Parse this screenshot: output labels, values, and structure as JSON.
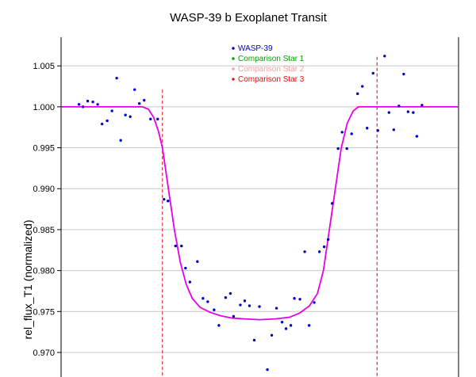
{
  "chart_data": {
    "type": "scatter",
    "title": "WASP-39 b Exoplanet Transit",
    "xlabel": "",
    "ylabel": "rel_flux_T1 (normalized)",
    "xlim": [
      0,
      100
    ],
    "ylim": [
      0.967,
      1.0085
    ],
    "yticks": [
      0.97,
      0.975,
      0.98,
      0.985,
      0.99,
      0.995,
      1.0,
      1.005
    ],
    "ytick_labels": [
      "0.970",
      "0.975",
      "0.980",
      "0.985",
      "0.990",
      "0.995",
      "1.000",
      "1.005"
    ],
    "grid": true,
    "legend_position": "top-center",
    "colors": {
      "points": "#0000cc",
      "model": "#e600e6",
      "markers": "#e03030",
      "grid": "#c8c8c8",
      "comparison1": "#00a000",
      "comparison2": "#f0a0a0",
      "comparison3": "#e01010"
    },
    "legend": [
      {
        "label": "WASP-39",
        "color": "#0000cc"
      },
      {
        "label": "Comparison Star 1",
        "color": "#00a000"
      },
      {
        "label": "Comparison Star 2",
        "color": "#f0a0a0"
      },
      {
        "label": "Comparison Star 3",
        "color": "#e01010"
      }
    ],
    "ingress_marker_x": 25.5,
    "egress_marker_x": 79.5,
    "series": [
      {
        "name": "WASP-39",
        "kind": "scatter",
        "points": [
          [
            4.5,
            1.0003
          ],
          [
            5.5,
            1.0
          ],
          [
            6.7,
            1.0007
          ],
          [
            8.0,
            1.0006
          ],
          [
            9.2,
            1.0003
          ],
          [
            10.3,
            0.9979
          ],
          [
            11.6,
            0.9983
          ],
          [
            12.8,
            0.9995
          ],
          [
            14.0,
            1.0035
          ],
          [
            15.0,
            0.9959
          ],
          [
            16.2,
            0.999
          ],
          [
            17.4,
            0.9988
          ],
          [
            18.5,
            1.0021
          ],
          [
            19.7,
            1.0004
          ],
          [
            20.9,
            1.0008
          ],
          [
            22.5,
            0.9985
          ],
          [
            24.3,
            0.9985
          ],
          [
            25.9,
            0.9887
          ],
          [
            26.9,
            0.9885
          ],
          [
            28.8,
            0.983
          ],
          [
            30.3,
            0.983
          ],
          [
            31.3,
            0.9803
          ],
          [
            32.4,
            0.9786
          ],
          [
            34.3,
            0.9811
          ],
          [
            35.7,
            0.9766
          ],
          [
            36.9,
            0.9762
          ],
          [
            38.5,
            0.9752
          ],
          [
            39.7,
            0.9733
          ],
          [
            41.4,
            0.9767
          ],
          [
            42.6,
            0.9772
          ],
          [
            43.4,
            0.9744
          ],
          [
            45.1,
            0.9758
          ],
          [
            46.2,
            0.9763
          ],
          [
            47.4,
            0.9757
          ],
          [
            48.6,
            0.9715
          ],
          [
            49.9,
            0.9756
          ],
          [
            51.9,
            0.9679
          ],
          [
            53.0,
            0.9721
          ],
          [
            54.2,
            0.9754
          ],
          [
            55.6,
            0.9737
          ],
          [
            56.6,
            0.9729
          ],
          [
            57.8,
            0.9733
          ],
          [
            58.7,
            0.9766
          ],
          [
            60.1,
            0.9765
          ],
          [
            61.3,
            0.9823
          ],
          [
            62.4,
            0.9733
          ],
          [
            63.7,
            0.9761
          ],
          [
            65.0,
            0.9823
          ],
          [
            66.2,
            0.9829
          ],
          [
            67.2,
            0.9838
          ],
          [
            68.2,
            0.9882
          ],
          [
            69.7,
            0.9949
          ],
          [
            70.7,
            0.9969
          ],
          [
            71.9,
            0.9949
          ],
          [
            73.1,
            0.9967
          ],
          [
            74.6,
            1.0016
          ],
          [
            75.8,
            1.0025
          ],
          [
            77.0,
            0.9974
          ],
          [
            78.5,
            1.0041
          ],
          [
            79.7,
            0.9971
          ],
          [
            81.4,
            1.0062
          ],
          [
            82.5,
            0.9993
          ],
          [
            83.7,
            0.9972
          ],
          [
            85.0,
            1.0001
          ],
          [
            86.2,
            1.004
          ],
          [
            87.3,
            0.9994
          ],
          [
            88.6,
            0.9993
          ],
          [
            89.5,
            0.9964
          ],
          [
            90.8,
            1.0002
          ]
        ]
      },
      {
        "name": "",
        "kind": "model",
        "points": [
          [
            0,
            1.0
          ],
          [
            20.5,
            1.0
          ],
          [
            22.0,
            0.9997
          ],
          [
            23.3,
            0.9987
          ],
          [
            24.5,
            0.997
          ],
          [
            25.5,
            0.995
          ],
          [
            27.0,
            0.99
          ],
          [
            28.5,
            0.985
          ],
          [
            30.0,
            0.981
          ],
          [
            31.5,
            0.9783
          ],
          [
            33.0,
            0.9766
          ],
          [
            35.0,
            0.9755
          ],
          [
            37.5,
            0.9749
          ],
          [
            40.0,
            0.9745
          ],
          [
            43.0,
            0.9742
          ],
          [
            46.0,
            0.9741
          ],
          [
            50.0,
            0.974
          ],
          [
            54.0,
            0.9741
          ],
          [
            57.5,
            0.9743
          ],
          [
            60.0,
            0.9748
          ],
          [
            62.5,
            0.9757
          ],
          [
            64.5,
            0.9772
          ],
          [
            66.0,
            0.98
          ],
          [
            67.5,
            0.985
          ],
          [
            69.0,
            0.99
          ],
          [
            70.5,
            0.995
          ],
          [
            72.0,
            0.998
          ],
          [
            73.5,
            0.9995
          ],
          [
            74.8,
            1.0
          ],
          [
            100,
            1.0
          ]
        ]
      }
    ]
  }
}
